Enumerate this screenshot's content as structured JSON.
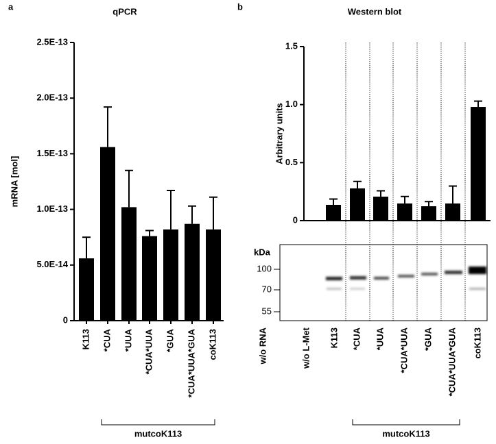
{
  "chart_data": [
    {
      "type": "bar",
      "panel": "a",
      "title": "qPCR",
      "y_label": "mRNA [mol]",
      "categories": [
        "K113",
        "*CUA",
        "*UUA",
        "*CUA*UUA",
        "*GUA",
        "*CUA*UUA*GUA",
        "coK113"
      ],
      "values": [
        5.6e-14,
        1.56e-13,
        1.02e-13,
        7.6e-14,
        8.2e-14,
        8.7e-14,
        8.2e-14
      ],
      "errors": [
        1.9e-14,
        3.6e-14,
        3.3e-14,
        5e-15,
        3.5e-14,
        1.6e-14,
        2.9e-14
      ],
      "color": "#000000",
      "ylim": [
        0,
        2.5e-13
      ],
      "yticks": [
        0,
        {
          "value": 5e-14,
          "label": "5.0E-14"
        },
        {
          "value": 1e-13,
          "label": "1.0E-13"
        },
        {
          "value": 1.5e-13,
          "label": "1.5E-13"
        },
        {
          "value": 2e-13,
          "label": "2.0E-13"
        },
        {
          "value": 2.5e-13,
          "label": "2.5E-13"
        }
      ],
      "group_label": "mutcoK113"
    },
    {
      "type": "bar",
      "panel": "b",
      "title": "Western blot",
      "y_label": "Arbitrary units",
      "categories": [
        "K113",
        "*CUA",
        "*UUA",
        "*CUA*UUA",
        "*GUA",
        "*CUA*UUA*GUA",
        "coK113"
      ],
      "values": [
        0.136,
        0.278,
        0.207,
        0.148,
        0.124,
        0.148,
        0.98
      ],
      "errors": [
        0.05,
        0.06,
        0.05,
        0.06,
        0.04,
        0.15,
        0.05
      ],
      "color": "#000000",
      "ylim": [
        0,
        1.5
      ],
      "yticks": [
        0,
        0.5,
        {
          "value": 1,
          "label": "1.0"
        },
        {
          "value": 1.5,
          "label": "1.5"
        }
      ],
      "group_label": "mutcoK113",
      "blot": {
        "unit_label": "kDa",
        "markers": [
          "100",
          "70",
          "55"
        ],
        "lanes": [
          "w/o RNA",
          "w/o L-Met",
          "K113",
          "*CUA",
          "*UUA",
          "*CUA*UUA",
          "*GUA",
          "*CUA*UUA*GUA",
          "coK113"
        ]
      }
    }
  ]
}
